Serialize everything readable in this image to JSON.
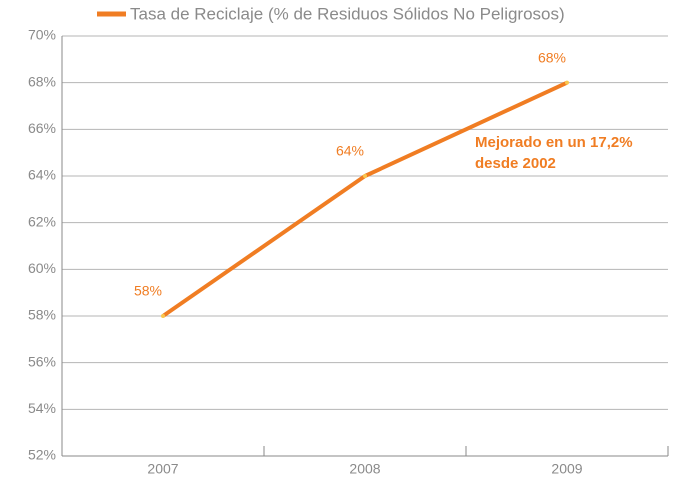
{
  "chart_data": {
    "type": "line",
    "categories": [
      "2007",
      "2008",
      "2009"
    ],
    "series": [
      {
        "name": "Tasa de Reciclaje (% de Residuos Sólidos No Peligrosos)",
        "color": "#f07d23",
        "values": [
          58,
          64,
          68
        ],
        "value_labels": [
          "58%",
          "64%",
          "68%"
        ]
      }
    ],
    "ylim": [
      52,
      70
    ],
    "yticks": [
      {
        "value": 52,
        "label": "52%"
      },
      {
        "value": 54,
        "label": "54%"
      },
      {
        "value": 56,
        "label": "56%"
      },
      {
        "value": 58,
        "label": "58%"
      },
      {
        "value": 60,
        "label": "60%"
      },
      {
        "value": 62,
        "label": "62%"
      },
      {
        "value": 64,
        "label": "64%"
      },
      {
        "value": 66,
        "label": "66%"
      },
      {
        "value": 68,
        "label": "68%"
      },
      {
        "value": 70,
        "label": "70%"
      }
    ],
    "grid": true,
    "legend": "top",
    "annotations": [
      "Mejorado en un 17,2%",
      "desde 2002"
    ]
  }
}
